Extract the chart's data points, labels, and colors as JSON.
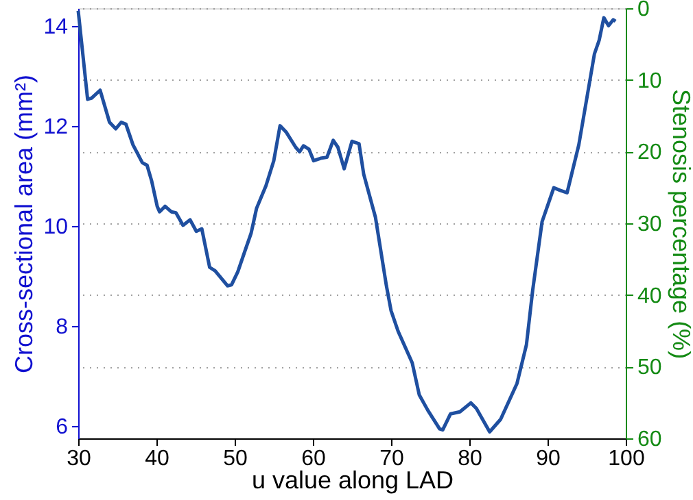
{
  "chart_data": {
    "type": "line",
    "xlabel": "u value along LAD",
    "ylabel": "Cross-sectional area (mm²)",
    "y2label": "Stenosis percentage (%)",
    "xlim": [
      30,
      100
    ],
    "xticks": [
      30,
      40,
      50,
      60,
      70,
      80,
      90,
      100
    ],
    "ylim": [
      5.75,
      14.35
    ],
    "yticks": [
      6,
      8,
      10,
      12,
      14
    ],
    "y2lim": [
      60,
      0
    ],
    "y2ticks": [
      0,
      10,
      20,
      30,
      40,
      50,
      60
    ],
    "grid": "y2",
    "line_style": "solid",
    "marker": "none",
    "series": [
      {
        "color": "#1f4fa0",
        "x": [
          30,
          31.2,
          31.7,
          32.8,
          34.0,
          34.8,
          35.5,
          36.1,
          37.0,
          38.2,
          38.8,
          39.4,
          40.1,
          40.4,
          41.1,
          41.9,
          42.5,
          43.4,
          44.3,
          45.1,
          45.8,
          46.8,
          47.5,
          49.1,
          49.6,
          50.4,
          51.3,
          52.1,
          52.8,
          54.0,
          55.0,
          55.8,
          56.6,
          57.8,
          58.3,
          58.8,
          59.5,
          60.1,
          61.0,
          61.8,
          62.6,
          63.2,
          64.0,
          65.0,
          65.9,
          66.5,
          68.0,
          69.4,
          70.0,
          70.9,
          72.7,
          73.6,
          74.7,
          76.2,
          76.6,
          77.6,
          78.8,
          80.2,
          80.9,
          82.6,
          84.0,
          86.1,
          87.3,
          88.1,
          89.3,
          90.8,
          91.6,
          92.5,
          94.0,
          96.0,
          96.6,
          97.2,
          97.8,
          98.4,
          98.7
        ],
        "values": [
          14.3,
          12.53,
          12.55,
          12.71,
          12.07,
          11.94,
          12.07,
          12.03,
          11.62,
          11.26,
          11.21,
          10.89,
          10.39,
          10.28,
          10.39,
          10.28,
          10.26,
          10.01,
          10.12,
          9.89,
          9.94,
          9.17,
          9.1,
          8.8,
          8.82,
          9.08,
          9.49,
          9.85,
          10.35,
          10.8,
          11.3,
          12.0,
          11.87,
          11.57,
          11.48,
          11.6,
          11.53,
          11.3,
          11.35,
          11.37,
          11.71,
          11.57,
          11.14,
          11.69,
          11.64,
          11.03,
          10.17,
          8.8,
          8.3,
          7.89,
          7.26,
          6.62,
          6.31,
          5.94,
          5.92,
          6.24,
          6.28,
          6.46,
          6.35,
          5.88,
          6.13,
          6.85,
          7.62,
          8.71,
          10.08,
          10.76,
          10.71,
          10.66,
          11.62,
          13.44,
          13.71,
          14.16,
          14.0,
          14.12,
          14.09
        ]
      }
    ]
  }
}
